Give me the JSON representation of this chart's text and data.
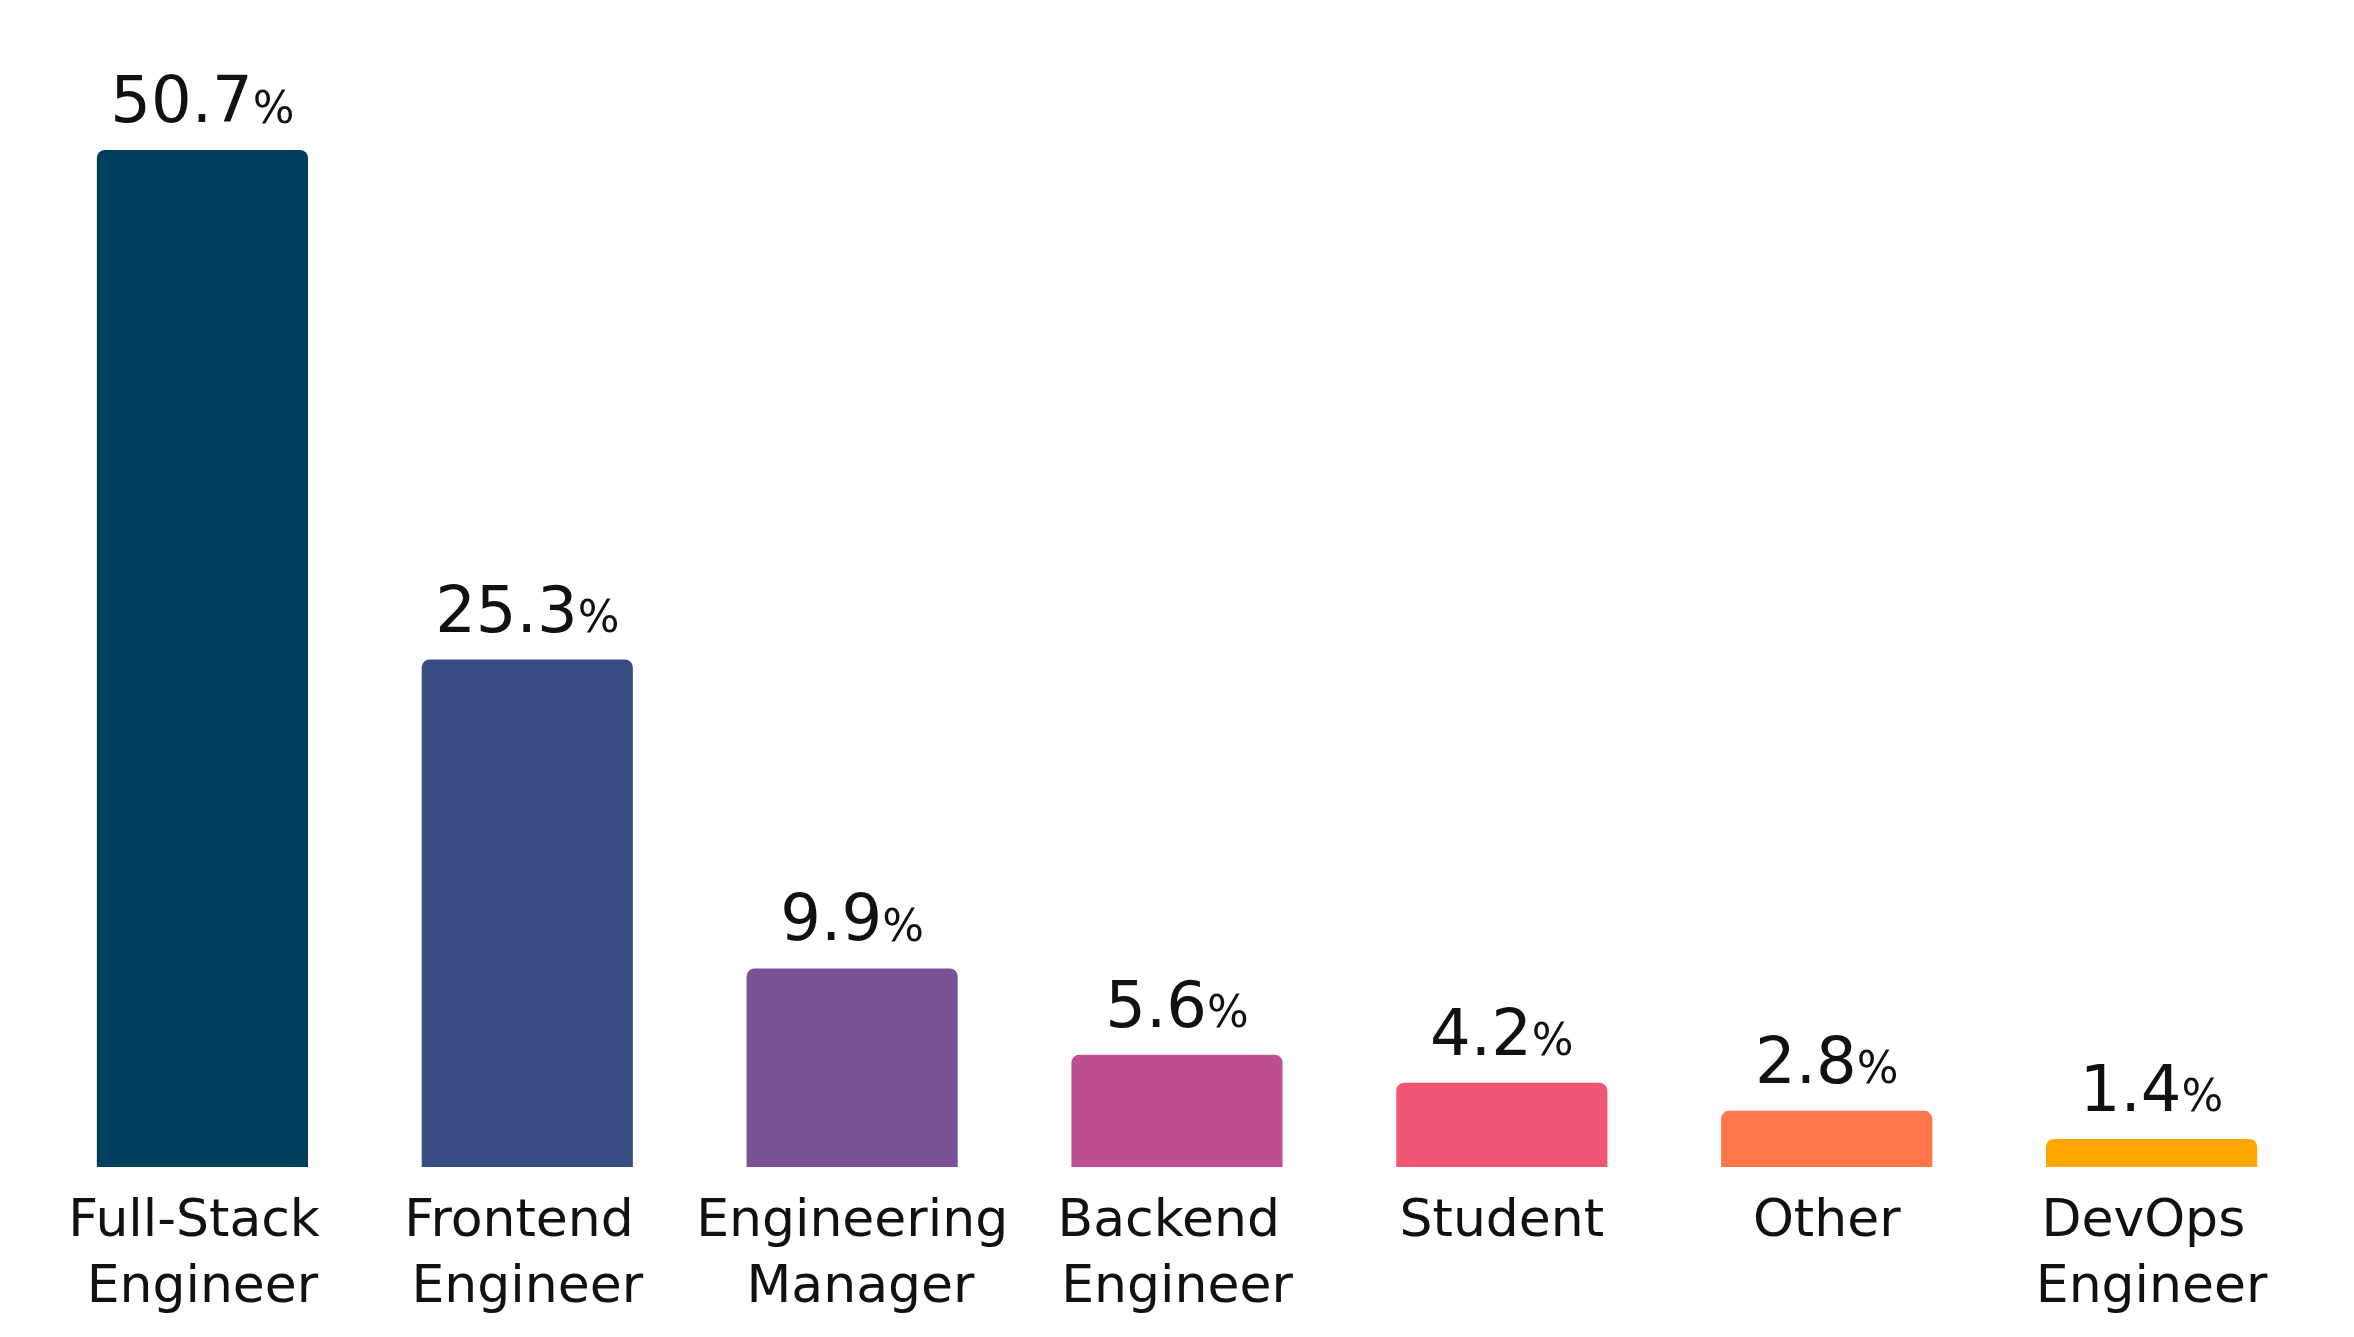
{
  "chart_data": {
    "type": "bar",
    "categories": [
      "Full-Stack Engineer",
      "Frontend Engineer",
      "Engineering Manager",
      "Backend Engineer",
      "Student",
      "Other",
      "DevOps Engineer"
    ],
    "values": [
      50.7,
      25.3,
      9.9,
      5.6,
      4.2,
      2.8,
      1.4
    ],
    "colors": [
      "#003f5c",
      "#374c80",
      "#7a5195",
      "#bc5090",
      "#ef5675",
      "#ff764a",
      "#ffa600"
    ],
    "value_labels": [
      "50.7%",
      "25.3%",
      "9.9%",
      "5.6%",
      "4.2%",
      "2.8%",
      "1.4%"
    ],
    "orientation": "vertical"
  }
}
